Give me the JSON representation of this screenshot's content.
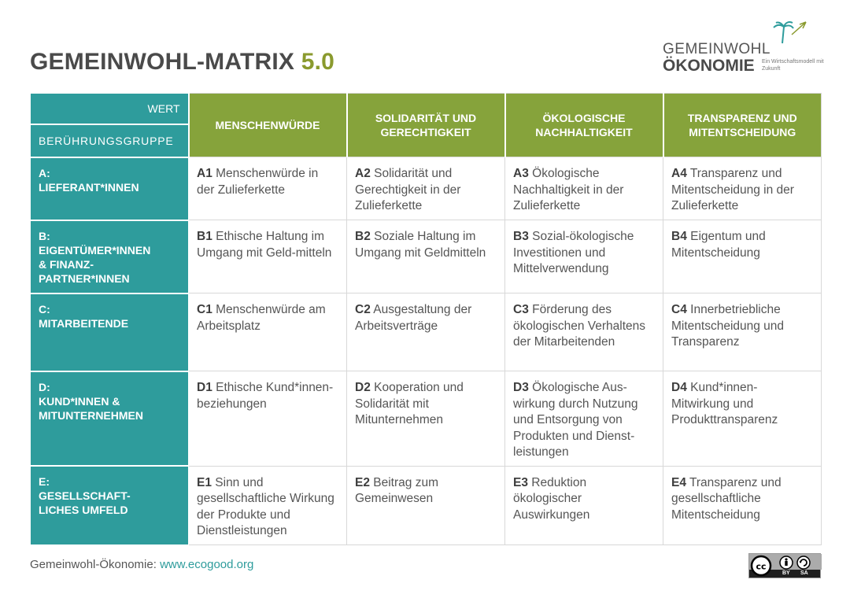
{
  "header": {
    "title": "GEMEINWOHL-MATRIX",
    "version": "5.0"
  },
  "logo": {
    "line1": "GEMEINWOHL",
    "line2": "ÖKONOMIE",
    "tagline": "Ein Wirtschaftsmodell mit Zukunft",
    "icon": "palm-tree-icon"
  },
  "matrix": {
    "corner_value_label": "WERT",
    "corner_group_label": "BERÜHRUNGSGRUPPE",
    "values": [
      "MENSCHENWÜRDE",
      "SOLIDARITÄT UND GERECHTIGKEIT",
      "ÖKOLOGISCHE NACHHALTIGKEIT",
      "TRANSPARENZ UND MITENTSCHEIDUNG"
    ],
    "rows": [
      {
        "group": "A:\nLIEFERANT*INNEN",
        "cells": [
          {
            "code": "A1",
            "text": "Menschenwürde in der Zulieferkette"
          },
          {
            "code": "A2",
            "text": "Solidarität und Gerechtigkeit in der Zulieferkette"
          },
          {
            "code": "A3",
            "text": "Ökologische Nachhaltigkeit in der Zulieferkette"
          },
          {
            "code": "A4",
            "text": "Transparenz und Mitentscheidung in der Zulieferkette"
          }
        ]
      },
      {
        "group": "B:\nEIGENTÜMER*INNEN\n& FINANZ-\nPARTNER*INNEN",
        "cells": [
          {
            "code": "B1",
            "text": "Ethische Haltung im Umgang mit Geld-mitteln"
          },
          {
            "code": "B2",
            "text": "Soziale Haltung im Umgang mit Geldmitteln"
          },
          {
            "code": "B3",
            "text": "Sozial-ökologische Investitionen und Mittelverwendung"
          },
          {
            "code": "B4",
            "text": "Eigentum und Mitentscheidung"
          }
        ]
      },
      {
        "group": "C:\nMITARBEITENDE",
        "cells": [
          {
            "code": "C1",
            "text": "Menschenwürde am Arbeitsplatz"
          },
          {
            "code": "C2",
            "text": "Ausgestaltung der Arbeitsverträge"
          },
          {
            "code": "C3",
            "text": "Förderung des ökologischen Verhaltens der Mitarbeitenden"
          },
          {
            "code": "C4",
            "text": "Innerbetriebliche Mitentscheidung und Transparenz"
          }
        ]
      },
      {
        "group": "D:\nKUND*INNEN &\nMITUNTERNEHMEN",
        "cells": [
          {
            "code": "D1",
            "text": "Ethische Kund*innen-beziehungen"
          },
          {
            "code": "D2",
            "text": "Kooperation und Solidarität mit Mitunternehmen"
          },
          {
            "code": "D3",
            "text": "Ökologische Aus-wirkung durch Nutzung und Entsorgung von Produkten und Dienst-leistungen"
          },
          {
            "code": "D4",
            "text": "Kund*innen-Mitwirkung und Produkttransparenz"
          }
        ]
      },
      {
        "group": "E:\nGESELLSCHAFT-\nLICHES UMFELD",
        "cells": [
          {
            "code": "E1",
            "text": "Sinn und gesellschaftliche Wirkung der Produkte und Dienstleistungen"
          },
          {
            "code": "E2",
            "text": "Beitrag zum Gemeinwesen"
          },
          {
            "code": "E3",
            "text": "Reduktion ökologischer Auswirkungen"
          },
          {
            "code": "E4",
            "text": "Transparenz und gesellschaftliche Mitentscheidung"
          }
        ]
      }
    ]
  },
  "footer": {
    "prefix": "Gemeinwohl-Ökonomie:",
    "link": "www.ecogood.org"
  },
  "license": {
    "icon": "cc-by-sa-icon",
    "by": "BY",
    "sa": "SA"
  },
  "colors": {
    "teal": "#2e9c9c",
    "green": "#86a33b",
    "version_green": "#8a9a2e"
  }
}
